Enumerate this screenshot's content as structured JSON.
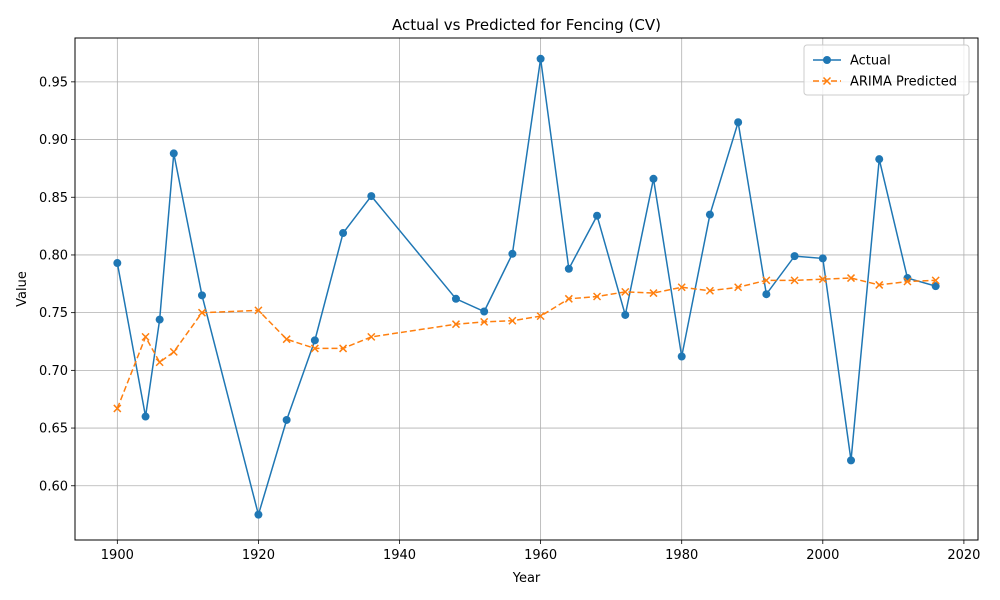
{
  "chart_data": {
    "type": "line",
    "title": "Actual vs Predicted for Fencing (CV)",
    "xlabel": "Year",
    "ylabel": "Value",
    "xlim": [
      1894,
      2022
    ],
    "ylim": [
      0.553,
      0.988
    ],
    "xticks": [
      1900,
      1920,
      1940,
      1960,
      1980,
      2000,
      2020
    ],
    "yticks": [
      0.6,
      0.65,
      0.7,
      0.75,
      0.8,
      0.85,
      0.9,
      0.95
    ],
    "ytick_labels": [
      "0.60",
      "0.65",
      "0.70",
      "0.75",
      "0.80",
      "0.85",
      "0.90",
      "0.95"
    ],
    "grid": true,
    "legend_position": "top-right",
    "x": [
      1900,
      1904,
      1906,
      1908,
      1912,
      1920,
      1924,
      1928,
      1932,
      1936,
      1948,
      1952,
      1956,
      1960,
      1964,
      1968,
      1972,
      1976,
      1980,
      1984,
      1988,
      1992,
      1996,
      2000,
      2004,
      2008,
      2012,
      2016
    ],
    "series": [
      {
        "name": "Actual",
        "color": "#1f77b4",
        "style": "solid",
        "marker": "circle",
        "values": [
          0.793,
          0.66,
          0.744,
          0.888,
          0.765,
          0.575,
          0.657,
          0.726,
          0.819,
          0.851,
          0.762,
          0.751,
          0.801,
          0.97,
          0.788,
          0.834,
          0.748,
          0.866,
          0.712,
          0.835,
          0.915,
          0.766,
          0.799,
          0.797,
          0.622,
          0.883,
          0.78,
          0.773
        ]
      },
      {
        "name": "ARIMA Predicted",
        "color": "#ff7f0e",
        "style": "dashed",
        "marker": "x",
        "values": [
          0.667,
          0.729,
          0.707,
          0.716,
          0.75,
          0.752,
          0.727,
          0.719,
          0.719,
          0.729,
          0.74,
          0.742,
          0.743,
          0.747,
          0.762,
          0.764,
          0.768,
          0.767,
          0.772,
          0.769,
          0.772,
          0.778,
          0.778,
          0.779,
          0.78,
          0.774,
          0.777,
          0.778
        ]
      }
    ]
  }
}
